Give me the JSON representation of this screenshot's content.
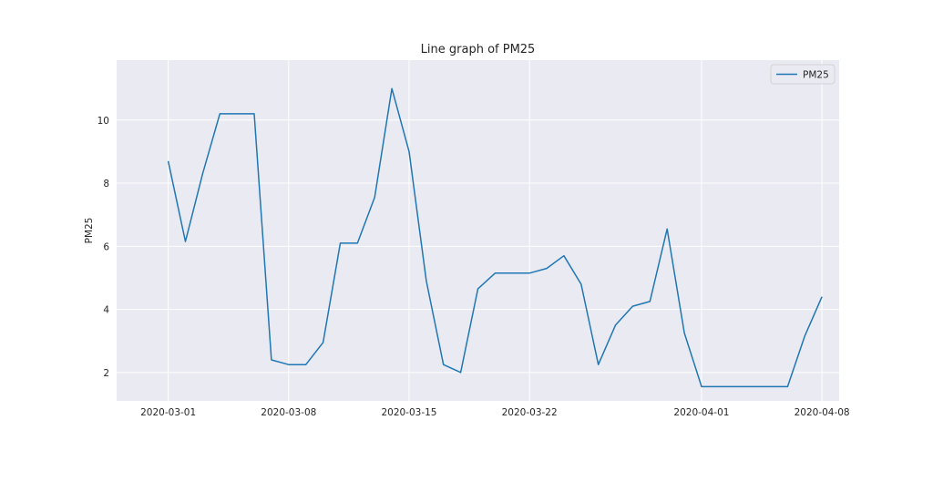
{
  "chart_data": {
    "type": "line",
    "title": "Line graph of PM25",
    "xlabel": "",
    "ylabel": "PM25",
    "x_tick_labels": [
      "2020-03-01",
      "2020-03-08",
      "2020-03-15",
      "2020-03-22",
      "2020-04-01",
      "2020-04-08"
    ],
    "y_ticks": [
      2,
      4,
      6,
      8,
      10
    ],
    "x_range": [
      "2020-02-27",
      "2020-04-09"
    ],
    "ylim": [
      1.1,
      11.9
    ],
    "grid": true,
    "legend_position": "top-right",
    "colors": {
      "background": "#EAEAF2",
      "grid": "#FFFFFF",
      "line": "#1F77B4"
    },
    "series": [
      {
        "name": "PM25",
        "x": [
          "2020-03-01",
          "2020-03-02",
          "2020-03-03",
          "2020-03-04",
          "2020-03-05",
          "2020-03-06",
          "2020-03-07",
          "2020-03-08",
          "2020-03-09",
          "2020-03-10",
          "2020-03-11",
          "2020-03-12",
          "2020-03-13",
          "2020-03-14",
          "2020-03-15",
          "2020-03-16",
          "2020-03-17",
          "2020-03-18",
          "2020-03-19",
          "2020-03-20",
          "2020-03-21",
          "2020-03-22",
          "2020-03-23",
          "2020-03-24",
          "2020-03-25",
          "2020-03-26",
          "2020-03-27",
          "2020-03-28",
          "2020-03-29",
          "2020-03-30",
          "2020-03-31",
          "2020-04-01",
          "2020-04-02",
          "2020-04-03",
          "2020-04-04",
          "2020-04-05",
          "2020-04-06",
          "2020-04-07",
          "2020-04-08"
        ],
        "values": [
          8.7,
          6.15,
          8.3,
          10.2,
          10.2,
          10.2,
          2.4,
          2.25,
          2.25,
          2.95,
          6.1,
          6.1,
          7.55,
          11.0,
          9.0,
          4.9,
          2.25,
          2.0,
          4.65,
          5.15,
          5.15,
          5.15,
          5.3,
          5.7,
          4.8,
          2.25,
          3.5,
          4.1,
          4.25,
          6.55,
          3.25,
          1.55,
          1.55,
          1.55,
          1.55,
          1.55,
          1.55,
          3.15,
          4.4
        ]
      }
    ]
  }
}
